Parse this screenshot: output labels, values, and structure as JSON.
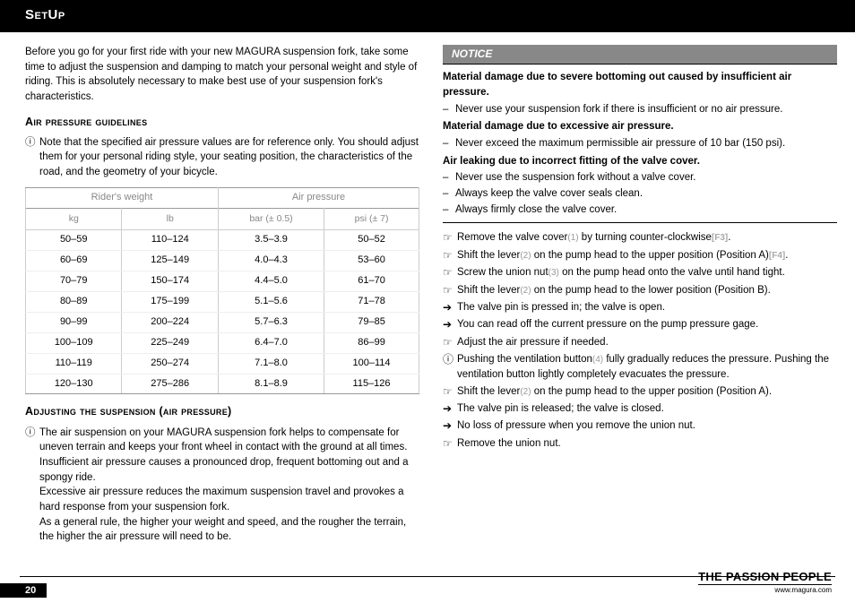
{
  "header": {
    "title": "SetUp"
  },
  "intro": "Before you go for your first ride with your new MAGURA suspension fork, take some time to adjust the suspension and damping to match your personal weight and style of riding. This is absolutely necessary to make best use of your suspension fork's characteristics.",
  "sec1": {
    "heading": "Air pressure guidelines",
    "note": "Note that the specified air pressure values are for reference only. You should adjust them for your personal riding style, your seating position, the characteristics of the road, and the geometry of your bicycle."
  },
  "table": {
    "group1": "Rider's weight",
    "group2": "Air pressure",
    "cols": [
      "kg",
      "lb",
      "bar (± 0.5)",
      "psi (± 7)"
    ],
    "rows": [
      [
        "50–59",
        "110–124",
        "3.5–3.9",
        "50–52"
      ],
      [
        "60–69",
        "125–149",
        "4.0–4.3",
        "53–60"
      ],
      [
        "70–79",
        "150–174",
        "4.4–5.0",
        "61–70"
      ],
      [
        "80–89",
        "175–199",
        "5.1–5.6",
        "71–78"
      ],
      [
        "90–99",
        "200–224",
        "5.7–6.3",
        "79–85"
      ],
      [
        "100–109",
        "225–249",
        "6.4–7.0",
        "86–99"
      ],
      [
        "110–119",
        "250–274",
        "7.1–8.0",
        "100–114"
      ],
      [
        "120–130",
        "275–286",
        "8.1–8.9",
        "115–126"
      ]
    ]
  },
  "sec2": {
    "heading": "Adjusting the suspension (air pressure)",
    "p1": "The air suspension on your MAGURA suspension fork helps to compensate for uneven terrain and keeps your front wheel in contact with the ground at all times.",
    "p2": "Insufficient air pressure causes a pronounced drop, frequent bottoming out and a spongy ride.",
    "p3": "Excessive air pressure reduces the maximum suspension travel and provokes a hard response from your suspension fork.",
    "p4": "As a general rule, the higher your weight and speed, and the rougher the terrain, the higher the air pressure will need to be."
  },
  "notice": {
    "label": "NOTICE",
    "h1": "Material damage due to severe bottoming out caused by insufficient air pressure.",
    "d1": "Never use your suspension fork if there is insufficient or no air pressure.",
    "h2": "Material damage due to excessive air pressure.",
    "d2": "Never exceed the maximum permissible air pressure of 10 bar (150 psi).",
    "h3": "Air leaking due to incorrect fitting of the valve cover.",
    "d3": "Never use the suspension fork without a valve cover.",
    "d4": "Always keep the valve cover seals clean.",
    "d5": "Always firmly close the valve cover."
  },
  "steps": {
    "s1a": "Remove the valve cover",
    "s1ref": "(1)",
    "s1b": " by turning counter-clockwise",
    "s1f": "[F3]",
    "s1c": ".",
    "s2a": "Shift the lever",
    "s2ref": "(2)",
    "s2b": " on the pump head to the upper position (Position A)",
    "s2f": "[F4]",
    "s2c": ".",
    "s3a": "Screw the union nut",
    "s3ref": "(3)",
    "s3b": " on the pump head onto the valve until hand tight.",
    "s4a": "Shift the lever",
    "s4ref": "(2)",
    "s4b": " on the pump head to the lower position (Position B).",
    "s5": "The valve pin is pressed in; the valve is open.",
    "s6": "You can read off the current pressure on the pump pressure gage.",
    "s7": "Adjust the air pressure if needed.",
    "s8a": "Pushing the ventilation button",
    "s8ref": "(4)",
    "s8b": " fully gradually reduces the pressure. Pushing the ventilation button lightly completely evacuates the pressure.",
    "s9a": "Shift the lever",
    "s9ref": "(2)",
    "s9b": " on the pump head to the upper position (Position A).",
    "s10": "The valve pin is released; the valve is closed.",
    "s11": "No loss of pressure when you remove the union nut.",
    "s12": "Remove the union nut."
  },
  "sym": {
    "info": "ⓘ",
    "hand": "☞",
    "arrow": "➔"
  },
  "footer": {
    "page": "20",
    "tag": "THE PASSION PEOPLE",
    "url": "www.magura.com"
  }
}
